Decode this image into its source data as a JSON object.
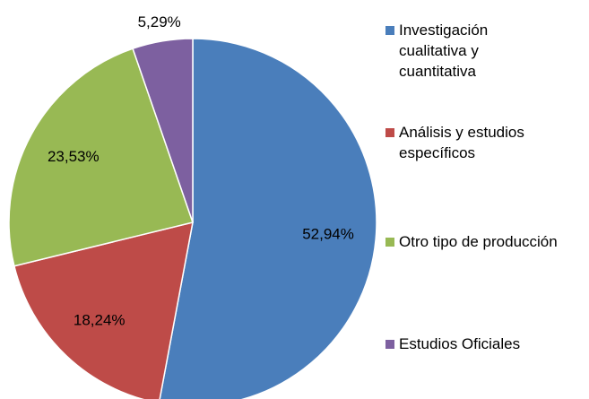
{
  "chart_data": {
    "type": "pie",
    "categories": [
      "Investigación cualitativa y cuantitativa",
      "Análisis y estudios específicos",
      "Otro tipo de producción",
      "Estudios Oficiales"
    ],
    "values": [
      52.94,
      18.24,
      23.53,
      5.29
    ],
    "value_labels": [
      "52,94%",
      "18,24%",
      "23,53%",
      "5,29%"
    ],
    "colors": [
      "#4a7ebb",
      "#be4b48",
      "#98b954",
      "#7d60a0"
    ],
    "legend": "right"
  }
}
